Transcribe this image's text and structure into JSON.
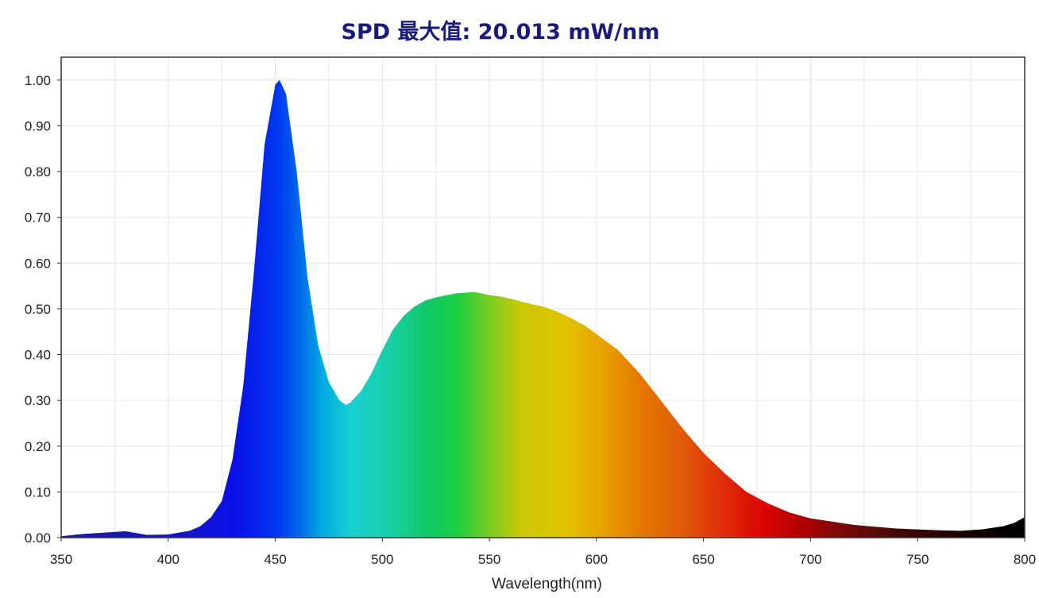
{
  "chart_data": {
    "type": "area",
    "title": "SPD 最大值: 20.013 mW/nm",
    "xlabel": "Wavelength(nm)",
    "ylabel": "",
    "xlim": [
      350,
      800
    ],
    "ylim": [
      0,
      1.05
    ],
    "grid": true,
    "x_ticks": [
      "350",
      "400",
      "450",
      "500",
      "550",
      "600",
      "650",
      "700",
      "750",
      "800"
    ],
    "y_ticks": [
      "0.00",
      "0.10",
      "0.20",
      "0.30",
      "0.40",
      "0.50",
      "0.60",
      "0.70",
      "0.80",
      "0.90",
      "1.00"
    ],
    "fill": "visible-spectrum gradient",
    "series": [
      {
        "x": [
          350,
          360,
          370,
          380,
          390,
          400,
          410,
          415,
          420,
          425,
          430,
          435,
          440,
          445,
          450,
          452,
          455,
          460,
          465,
          470,
          475,
          480,
          483,
          485,
          490,
          495,
          500,
          505,
          510,
          515,
          520,
          525,
          530,
          535,
          540,
          543,
          545,
          550,
          555,
          560,
          565,
          570,
          575,
          580,
          585,
          590,
          595,
          600,
          610,
          620,
          630,
          640,
          650,
          660,
          670,
          680,
          690,
          700,
          710,
          720,
          730,
          740,
          750,
          760,
          770,
          780,
          790,
          795,
          800
        ],
        "y": [
          0.003,
          0.008,
          0.011,
          0.014,
          0.006,
          0.007,
          0.015,
          0.025,
          0.045,
          0.08,
          0.17,
          0.33,
          0.58,
          0.86,
          0.99,
          1.0,
          0.97,
          0.8,
          0.57,
          0.42,
          0.34,
          0.3,
          0.29,
          0.295,
          0.32,
          0.36,
          0.41,
          0.455,
          0.485,
          0.505,
          0.518,
          0.525,
          0.53,
          0.534,
          0.536,
          0.537,
          0.535,
          0.53,
          0.527,
          0.522,
          0.516,
          0.51,
          0.505,
          0.497,
          0.487,
          0.475,
          0.462,
          0.445,
          0.41,
          0.36,
          0.3,
          0.24,
          0.185,
          0.14,
          0.1,
          0.075,
          0.055,
          0.042,
          0.035,
          0.028,
          0.024,
          0.02,
          0.018,
          0.016,
          0.015,
          0.018,
          0.025,
          0.032,
          0.045
        ]
      }
    ]
  }
}
